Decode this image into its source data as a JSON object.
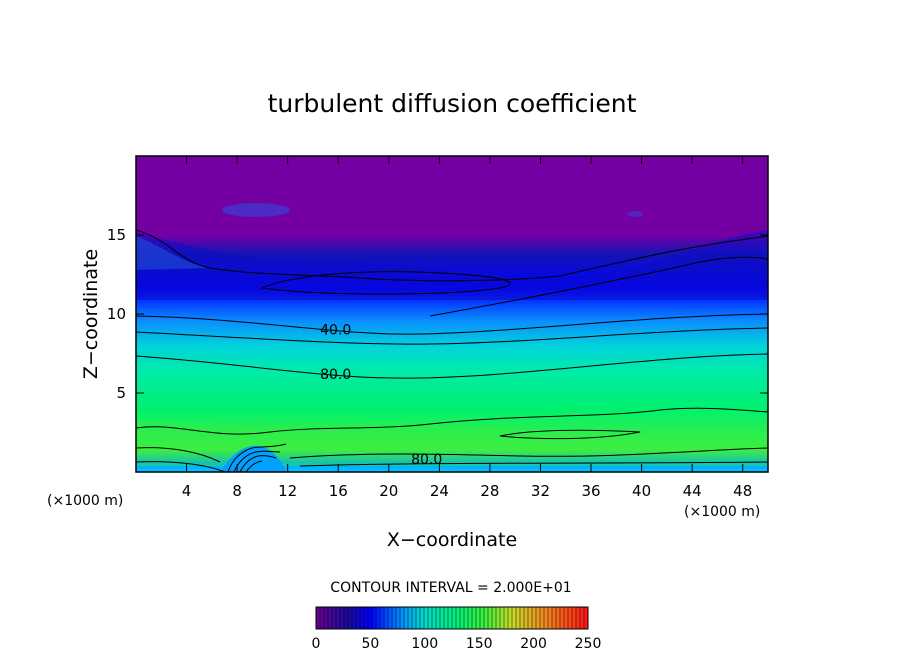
{
  "chart_data": {
    "type": "heatmap",
    "title": "turbulent diffusion coefficient",
    "xlabel": "X−coordinate",
    "ylabel": "Z−coordinate",
    "x_unit_left": "(×1000 m)",
    "x_unit_right": "(×1000 m)",
    "xlim": [
      0,
      50
    ],
    "ylim": [
      0,
      20
    ],
    "x_ticks": [
      4,
      8,
      12,
      16,
      20,
      24,
      28,
      32,
      36,
      40,
      44,
      48
    ],
    "y_ticks": [
      5,
      10,
      15
    ],
    "contour_interval_text": "CONTOUR INTERVAL = 2.000E+01",
    "contour_labels": [
      {
        "text": "40.0",
        "x": 15.8,
        "z": 8.7
      },
      {
        "text": "80.0",
        "x": 15.8,
        "z": 5.9
      },
      {
        "text": "80.0",
        "x": 23.0,
        "z": 0.5
      }
    ],
    "colorbar": {
      "min": 0,
      "max": 250,
      "tick_labels": [
        "0",
        "50",
        "100",
        "150",
        "200",
        "250"
      ],
      "tick_values": [
        0,
        50,
        100,
        150,
        200,
        250
      ]
    },
    "colors": {
      "low": "#7a00a8",
      "mid_low": "#0000ff",
      "mid": "#00c8e6",
      "mid_high": "#00f07a",
      "high": "#ff0000"
    }
  }
}
